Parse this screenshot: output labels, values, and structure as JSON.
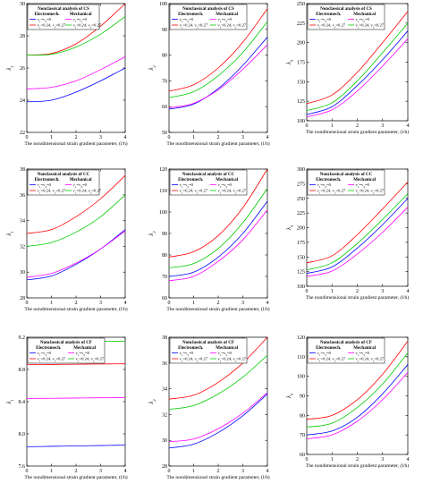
{
  "figure": {
    "colors": {
      "s1": "#0000ff",
      "s2": "#ff00ff",
      "s3": "#ff0000",
      "s4": "#00cc00"
    }
  },
  "chart_data": [
    {
      "type": "line",
      "legend": {
        "title": "Nonclassical analysis of CS",
        "col1": "Electromech.",
        "col2": "Mechanical"
      },
      "series_labels": [
        "v1=v2=0",
        "v1=v2=0",
        "v1=0.24, v2=0.27",
        "v1=0.24, v2=0.27"
      ],
      "xlabel": "The nondimensional strain gradient parameter, (l/h)",
      "ylabel": "λ1",
      "xlim": [
        0,
        4
      ],
      "ylim": [
        22,
        30
      ],
      "xticks": [
        "0",
        "1",
        "2",
        "3",
        "4"
      ],
      "yticks": [
        "22",
        "24",
        "26",
        "28",
        "30"
      ],
      "x": [
        0,
        1,
        2,
        3,
        4
      ],
      "series": [
        {
          "color": "#0000ff",
          "values": [
            23.9,
            24.0,
            24.5,
            25.2,
            26.0
          ]
        },
        {
          "color": "#ff00ff",
          "values": [
            24.7,
            24.8,
            25.2,
            25.9,
            26.7
          ]
        },
        {
          "color": "#ff0000",
          "values": [
            26.8,
            26.9,
            27.5,
            28.6,
            30.0
          ]
        },
        {
          "color": "#00cc00",
          "values": [
            26.8,
            26.85,
            27.3,
            28.1,
            29.2
          ]
        }
      ]
    },
    {
      "type": "line",
      "legend": {
        "title": "Nonclassical analysis of CS",
        "col1": "Electromech.",
        "col2": "Mechanical"
      },
      "series_labels": [
        "v1=v2=0",
        "v1=v2=0",
        "v1=0.24, v2=0.27",
        "v1=0.24, v2=0.27"
      ],
      "xlabel": "The nondimensional strain gradient parameter, (l/h)",
      "ylabel": "λ2",
      "xlim": [
        0,
        4
      ],
      "ylim": [
        50,
        100
      ],
      "xticks": [
        "0",
        "1",
        "2",
        "3",
        "4"
      ],
      "yticks": [
        "50",
        "60",
        "70",
        "80",
        "90",
        "100"
      ],
      "x": [
        0,
        1,
        2,
        3,
        4
      ],
      "series": [
        {
          "color": "#0000ff",
          "values": [
            59.0,
            61.0,
            67.0,
            76.0,
            87.0
          ]
        },
        {
          "color": "#ff00ff",
          "values": [
            59.5,
            61.3,
            66.5,
            74.5,
            84.0
          ]
        },
        {
          "color": "#ff0000",
          "values": [
            66.0,
            68.5,
            75.0,
            85.0,
            98.0
          ]
        },
        {
          "color": "#00cc00",
          "values": [
            63.5,
            65.8,
            72.0,
            81.0,
            93.0
          ]
        }
      ]
    },
    {
      "type": "line",
      "legend": {
        "title": "Nonclassical analysis of CS",
        "col1": "Electromech.",
        "col2": "Mechanical"
      },
      "series_labels": [
        "v1=v2=0",
        "v1=v2=0",
        "v1=0.24, v2=0.27",
        "v1=0.24, v2=0.27"
      ],
      "xlabel": "The nondimensional strain gradient parameter, (l/h)",
      "ylabel": "λ3",
      "xlim": [
        0,
        4
      ],
      "ylim": [
        100,
        250
      ],
      "xticks": [
        "0",
        "1",
        "2",
        "3",
        "4"
      ],
      "yticks": [
        "100",
        "125",
        "150",
        "175",
        "200",
        "225",
        "250"
      ],
      "x": [
        0,
        1,
        2,
        3,
        4
      ],
      "series": [
        {
          "color": "#0000ff",
          "values": [
            108,
            118,
            145,
            178,
            215
          ]
        },
        {
          "color": "#ff00ff",
          "values": [
            105,
            114,
            138,
            170,
            205
          ]
        },
        {
          "color": "#ff0000",
          "values": [
            122,
            133,
            162,
            200,
            240
          ]
        },
        {
          "color": "#00cc00",
          "values": [
            113,
            123,
            151,
            187,
            225
          ]
        }
      ]
    },
    {
      "type": "line",
      "legend": {
        "title": "Nonclassical analysis of CC",
        "col1": "Electromech.",
        "col2": "Mechanical"
      },
      "series_labels": [
        "v1=v2=0",
        "v1=v2=0",
        "v1=0.24, v2=0.27",
        "v1=0.24, v2=0.27"
      ],
      "xlabel": "The nondimensional strain gradient parameter, (l/h)",
      "ylabel": "λ1",
      "xlim": [
        0,
        4
      ],
      "ylim": [
        28,
        38
      ],
      "xticks": [
        "0",
        "1",
        "2",
        "3",
        "4"
      ],
      "yticks": [
        "28",
        "30",
        "32",
        "34",
        "36",
        "38"
      ],
      "x": [
        0,
        1,
        2,
        3,
        4
      ],
      "series": [
        {
          "color": "#0000ff",
          "values": [
            29.4,
            29.7,
            30.6,
            31.8,
            33.3
          ]
        },
        {
          "color": "#ff00ff",
          "values": [
            29.6,
            29.9,
            30.7,
            31.8,
            33.2
          ]
        },
        {
          "color": "#ff0000",
          "values": [
            33.0,
            33.3,
            34.3,
            35.7,
            37.5
          ]
        },
        {
          "color": "#00cc00",
          "values": [
            32.0,
            32.3,
            33.1,
            34.3,
            36.0
          ]
        }
      ]
    },
    {
      "type": "line",
      "legend": {
        "title": "Nonclassical analysis of CC",
        "col1": "Electromech.",
        "col2": "Mechanical"
      },
      "series_labels": [
        "v1=v2=0",
        "v1=v2=0",
        "v1=0.24, v2=0.27",
        "v1=0.24, v2=0.27"
      ],
      "xlabel": "The nondimensional strain gradient parameter, (l/h)",
      "ylabel": "λ2",
      "xlim": [
        0,
        4
      ],
      "ylim": [
        60,
        120
      ],
      "xticks": [
        "0",
        "1",
        "2",
        "3",
        "4"
      ],
      "yticks": [
        "60",
        "70",
        "80",
        "90",
        "100",
        "110",
        "120"
      ],
      "x": [
        0,
        1,
        2,
        3,
        4
      ],
      "series": [
        {
          "color": "#0000ff",
          "values": [
            70,
            72,
            79,
            90,
            105
          ]
        },
        {
          "color": "#ff00ff",
          "values": [
            68,
            70,
            77,
            87,
            101
          ]
        },
        {
          "color": "#ff0000",
          "values": [
            79,
            81.5,
            89,
            102,
            120
          ]
        },
        {
          "color": "#00cc00",
          "values": [
            74,
            76,
            83,
            95,
            111
          ]
        }
      ]
    },
    {
      "type": "line",
      "legend": {
        "title": "Nonclassical analysis of CC",
        "col1": "Electromech.",
        "col2": "Mechanical"
      },
      "series_labels": [
        "v1=v2=0",
        "v1=v2=0",
        "v1=0.24, v2=0.27",
        "v1=0.24, v2=0.27"
      ],
      "xlabel": "The nondimensional strain gradient parameter, (l/h)",
      "ylabel": "λ3",
      "xlim": [
        0,
        4
      ],
      "ylim": [
        100,
        300
      ],
      "xticks": [
        "0",
        "1",
        "2",
        "3",
        "4"
      ],
      "yticks": [
        "100",
        "125",
        "150",
        "175",
        "200",
        "225",
        "250",
        "275",
        "300"
      ],
      "x": [
        0,
        1,
        2,
        3,
        4
      ],
      "series": [
        {
          "color": "#0000ff",
          "values": [
            122,
            133,
            165,
            205,
            250
          ]
        },
        {
          "color": "#ff00ff",
          "values": [
            117,
            126,
            155,
            192,
            235
          ]
        },
        {
          "color": "#ff0000",
          "values": [
            140,
            152,
            188,
            232,
            278
          ]
        },
        {
          "color": "#00cc00",
          "values": [
            128,
            140,
            173,
            214,
            258
          ]
        }
      ]
    },
    {
      "type": "line",
      "legend": {
        "title": "Nonclassical analysis of CF",
        "col1": "Electromech.",
        "col2": "Mechanical"
      },
      "series_labels": [
        "v1=v2=0",
        "v1=v2=0",
        "v1=0.24, v2=0.27",
        "v1=0.24, v2=0.27"
      ],
      "xlabel": "The nondimensional strain gradient parameter, (l/h)",
      "ylabel": "λ1",
      "xlim": [
        0,
        4
      ],
      "ylim": [
        7.6,
        9.2
      ],
      "xticks": [
        "0",
        "1",
        "2",
        "3",
        "4"
      ],
      "yticks": [
        "7.6",
        "8.0",
        "8.4",
        "8.8",
        "9.2"
      ],
      "x": [
        0,
        1,
        2,
        3,
        4
      ],
      "series": [
        {
          "color": "#0000ff",
          "values": [
            7.84,
            7.845,
            7.85,
            7.855,
            7.86
          ]
        },
        {
          "color": "#ff00ff",
          "values": [
            8.44,
            8.442,
            8.445,
            8.448,
            8.45
          ]
        },
        {
          "color": "#ff0000",
          "values": [
            8.86,
            8.862,
            8.865,
            8.868,
            8.87
          ]
        },
        {
          "color": "#00cc00",
          "values": [
            9.14,
            9.142,
            9.145,
            9.148,
            9.15
          ]
        }
      ]
    },
    {
      "type": "line",
      "legend": {
        "title": "Nonclassical analysis of CF",
        "col1": "Electromech.",
        "col2": "Mechanical"
      },
      "series_labels": [
        "v1=v2=0",
        "v1=v2=0",
        "v1=0.24, v2=0.27",
        "v1=0.24, v2=0.27"
      ],
      "xlabel": "The nondimensional strain gradient parameter, (l/h)",
      "ylabel": "λ2",
      "xlim": [
        0,
        4
      ],
      "ylim": [
        28,
        38
      ],
      "xticks": [
        "0",
        "1",
        "2",
        "3",
        "4"
      ],
      "yticks": [
        "28",
        "30",
        "32",
        "34",
        "36",
        "38"
      ],
      "x": [
        0,
        1,
        2,
        3,
        4
      ],
      "series": [
        {
          "color": "#0000ff",
          "values": [
            29.4,
            29.7,
            30.6,
            31.9,
            33.6
          ]
        },
        {
          "color": "#ff00ff",
          "values": [
            29.9,
            30.1,
            30.9,
            32.1,
            33.7
          ]
        },
        {
          "color": "#ff0000",
          "values": [
            33.2,
            33.5,
            34.5,
            36.0,
            38.0
          ]
        },
        {
          "color": "#00cc00",
          "values": [
            32.4,
            32.7,
            33.6,
            34.9,
            36.6
          ]
        }
      ]
    },
    {
      "type": "line",
      "legend": {
        "title": "Nonclassical analysis of CF",
        "col1": "Electromech.",
        "col2": "Mechanical"
      },
      "series_labels": [
        "v1=v2=0",
        "v1=v2=0",
        "v1=0.24, v2=0.27",
        "v1=0.24, v2=0.27"
      ],
      "xlabel": "The nondimensional strain gradient parameter, (l/h)",
      "ylabel": "λ3",
      "xlim": [
        0,
        4
      ],
      "ylim": [
        60,
        120
      ],
      "xticks": [
        "0",
        "1",
        "2",
        "3",
        "4"
      ],
      "yticks": [
        "60",
        "70",
        "80",
        "90",
        "100",
        "110",
        "120"
      ],
      "x": [
        0,
        1,
        2,
        3,
        4
      ],
      "series": [
        {
          "color": "#0000ff",
          "values": [
            70,
            72,
            79,
            91,
            106
          ]
        },
        {
          "color": "#ff00ff",
          "values": [
            68,
            70,
            77,
            88,
            102
          ]
        },
        {
          "color": "#ff0000",
          "values": [
            78,
            80,
            88,
            101,
            118
          ]
        },
        {
          "color": "#00cc00",
          "values": [
            74,
            76,
            84,
            96,
            112
          ]
        }
      ]
    }
  ]
}
